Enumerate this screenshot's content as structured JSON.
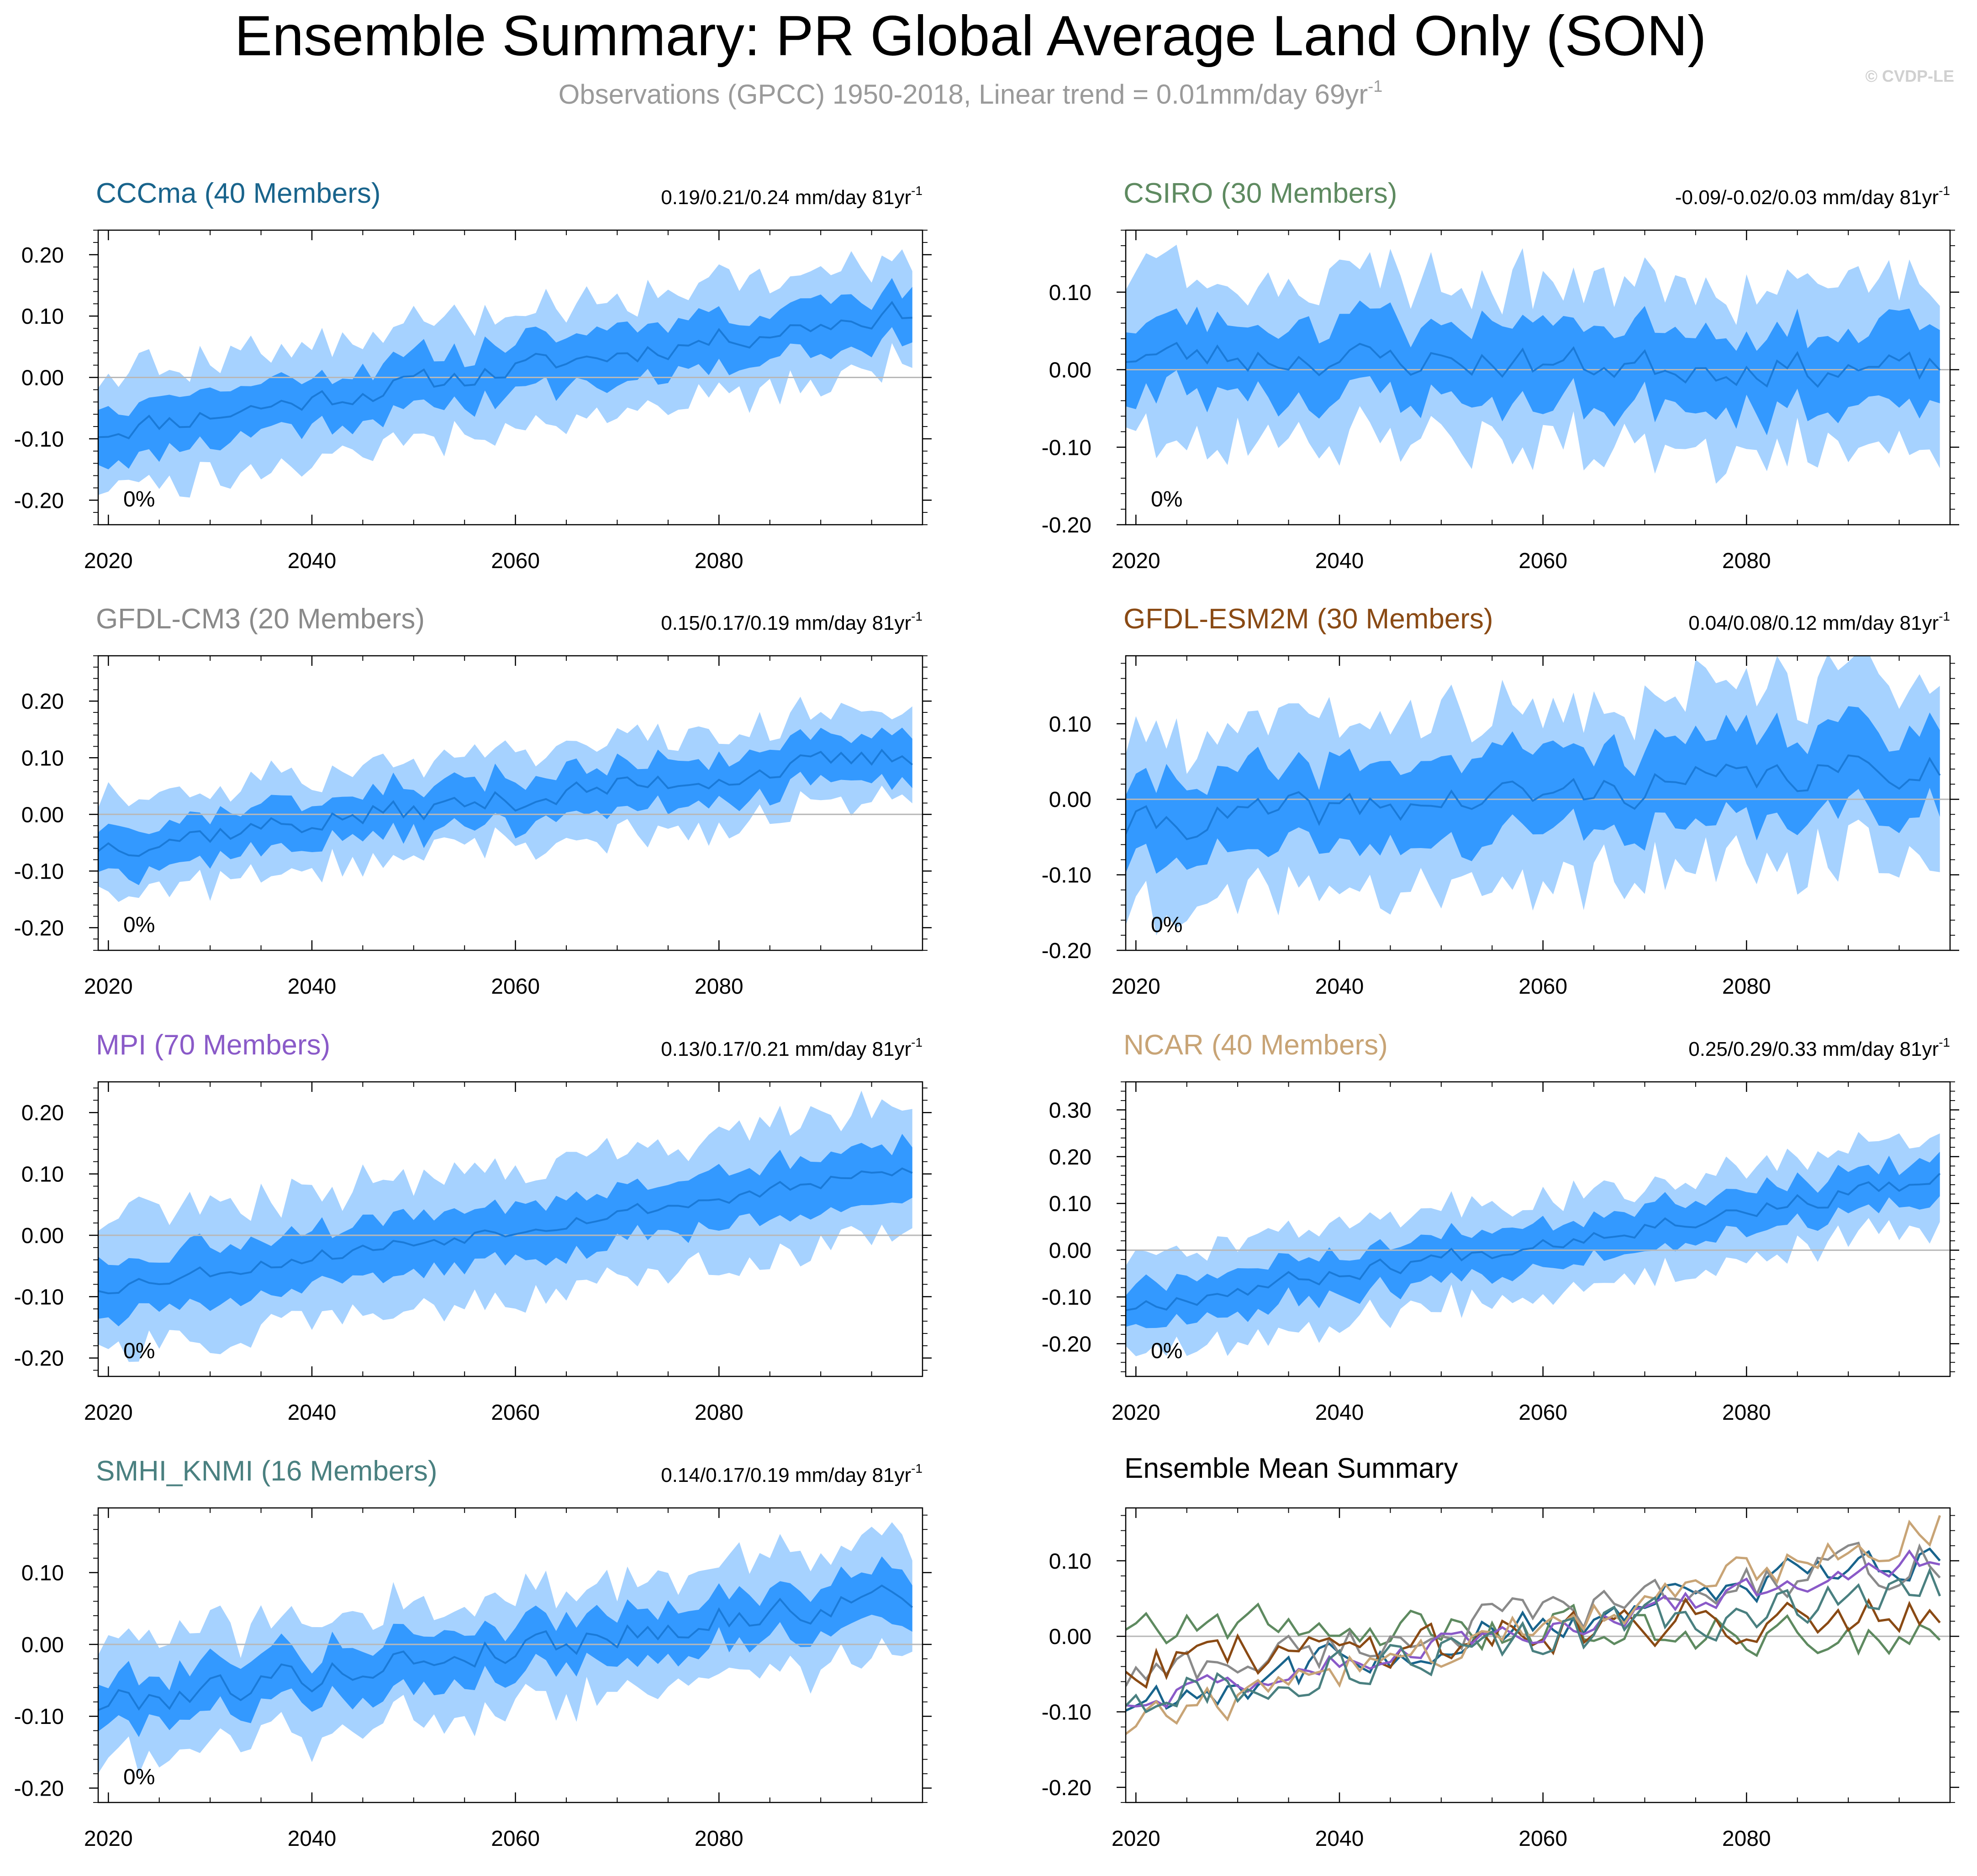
{
  "title": "Ensemble Summary: PR Global Average Land Only (SON)",
  "subtitle": "Observations (GPCC) 1950-2018, Linear trend = 0.01mm/day 69yr",
  "subtitle_exp": "-1",
  "copyright": "© CVDP-LE",
  "colors": {
    "band_outer": "#a6d2ff",
    "band_inner": "#3399ff",
    "mean_line": "#1a7ad8",
    "zero_line": "#b8b8b8",
    "axis": "#000000"
  },
  "chart_data": [
    {
      "type": "area",
      "title": "CCCma (40 Members)",
      "title_color": "#19648c",
      "stats": "0.19/0.21/0.24 mm/day 81yr",
      "stats_exp": "-1",
      "pct_label": "0%",
      "x": [
        2019,
        2100
      ],
      "x_ticks": [
        "2020",
        "2040",
        "2060",
        "2080"
      ],
      "x_tick_values": [
        2020,
        2040,
        2060,
        2080
      ],
      "ylim": [
        -0.24,
        0.24
      ],
      "y_ticks": [
        -0.2,
        -0.1,
        0.0,
        0.1,
        0.2
      ],
      "y_tick_labels": [
        "-0.20",
        "-0.10",
        "0.00",
        "0.10",
        "0.20"
      ],
      "mean_start": -0.088,
      "mean_end": 0.11,
      "inner_half_width": 0.042,
      "outer_half_width": 0.088,
      "noise": 0.018,
      "seed": 11
    },
    {
      "type": "area",
      "title": "CSIRO (30 Members)",
      "title_color": "#5e8a60",
      "stats": "-0.09/-0.02/0.03 mm/day 81yr",
      "stats_exp": "-1",
      "pct_label": "0%",
      "x": [
        2019,
        2100
      ],
      "x_ticks": [
        "2020",
        "2040",
        "2060",
        "2080"
      ],
      "x_tick_values": [
        2020,
        2040,
        2060,
        2080
      ],
      "ylim": [
        -0.2,
        0.18
      ],
      "y_ticks": [
        -0.2,
        -0.1,
        0.0,
        0.1
      ],
      "y_tick_labels": [
        "-0.20",
        "-0.10",
        "0.00",
        "0.10"
      ],
      "mean_start": 0.02,
      "mean_end": -0.002,
      "inner_half_width": 0.05,
      "outer_half_width": 0.1,
      "noise": 0.02,
      "seed": 23
    },
    {
      "type": "area",
      "title": "GFDL-CM3 (20 Members)",
      "title_color": "#8a8a8a",
      "stats": "0.15/0.17/0.19 mm/day 81yr",
      "stats_exp": "-1",
      "pct_label": "0%",
      "x": [
        2019,
        2100
      ],
      "x_ticks": [
        "2020",
        "2040",
        "2060",
        "2080"
      ],
      "x_tick_values": [
        2020,
        2040,
        2060,
        2080
      ],
      "ylim": [
        -0.24,
        0.28
      ],
      "y_ticks": [
        -0.2,
        -0.1,
        0.0,
        0.1,
        0.2
      ],
      "y_tick_labels": [
        "-0.20",
        "-0.10",
        "0.00",
        "0.10",
        "0.20"
      ],
      "mean_start": -0.055,
      "mean_end": 0.105,
      "inner_half_width": 0.04,
      "outer_half_width": 0.08,
      "noise": 0.02,
      "seed": 37
    },
    {
      "type": "area",
      "title": "GFDL-ESM2M (30 Members)",
      "title_color": "#8a4a14",
      "stats": "0.04/0.08/0.12 mm/day 81yr",
      "stats_exp": "-1",
      "pct_label": "0%",
      "x": [
        2019,
        2100
      ],
      "x_ticks": [
        "2020",
        "2040",
        "2060",
        "2080"
      ],
      "x_tick_values": [
        2020,
        2040,
        2060,
        2080
      ],
      "ylim": [
        -0.2,
        0.19
      ],
      "y_ticks": [
        -0.2,
        -0.1,
        0.0,
        0.1
      ],
      "y_tick_labels": [
        "-0.20",
        "-0.10",
        "0.00",
        "0.10"
      ],
      "mean_start": -0.035,
      "mean_end": 0.045,
      "inner_half_width": 0.055,
      "outer_half_width": 0.11,
      "noise": 0.022,
      "seed": 41
    },
    {
      "type": "area",
      "title": "MPI (70 Members)",
      "title_color": "#8a5ac8",
      "stats": "0.13/0.17/0.21 mm/day 81yr",
      "stats_exp": "-1",
      "pct_label": "0%",
      "x": [
        2019,
        2100
      ],
      "x_ticks": [
        "2020",
        "2040",
        "2060",
        "2080"
      ],
      "x_tick_values": [
        2020,
        2040,
        2060,
        2080
      ],
      "ylim": [
        -0.23,
        0.25
      ],
      "y_ticks": [
        -0.2,
        -0.1,
        0.0,
        0.1,
        0.2
      ],
      "y_tick_labels": [
        "-0.20",
        "-0.10",
        "0.00",
        "0.10",
        "0.20"
      ],
      "mean_start": -0.085,
      "mean_end": 0.105,
      "inner_half_width": 0.045,
      "outer_half_width": 0.1,
      "noise": 0.012,
      "seed": 53
    },
    {
      "type": "area",
      "title": "NCAR (40 Members)",
      "title_color": "#c8a476",
      "stats": "0.25/0.29/0.33 mm/day 81yr",
      "stats_exp": "-1",
      "pct_label": "0%",
      "x": [
        2019,
        2100
      ],
      "x_ticks": [
        "2020",
        "2040",
        "2060",
        "2080"
      ],
      "x_tick_values": [
        2020,
        2040,
        2060,
        2080
      ],
      "ylim": [
        -0.27,
        0.36
      ],
      "y_ticks": [
        -0.2,
        -0.1,
        0.0,
        0.1,
        0.2,
        0.3
      ],
      "y_tick_labels": [
        "-0.20",
        "-0.10",
        "0.00",
        "0.10",
        "0.20",
        "0.30"
      ],
      "mean_start": -0.12,
      "mean_end": 0.15,
      "inner_half_width": 0.045,
      "outer_half_width": 0.095,
      "noise": 0.018,
      "seed": 67
    },
    {
      "type": "area",
      "title": "SMHI_KNMI (16 Members)",
      "title_color": "#4a8080",
      "stats": "0.14/0.17/0.19 mm/day 81yr",
      "stats_exp": "-1",
      "pct_label": "0%",
      "x": [
        2019,
        2100
      ],
      "x_ticks": [
        "2020",
        "2040",
        "2060",
        "2080"
      ],
      "x_tick_values": [
        2020,
        2040,
        2060,
        2080
      ],
      "ylim": [
        -0.22,
        0.19
      ],
      "y_ticks": [
        -0.2,
        -0.1,
        0.0,
        0.1
      ],
      "y_tick_labels": [
        "-0.20",
        "-0.10",
        "0.00",
        "0.10"
      ],
      "mean_start": -0.082,
      "mean_end": 0.07,
      "inner_half_width": 0.035,
      "outer_half_width": 0.075,
      "noise": 0.02,
      "seed": 79
    },
    {
      "type": "line",
      "title": "Ensemble Mean Summary",
      "title_color": "#000000",
      "x": [
        2019,
        2100
      ],
      "x_ticks": [
        "2020",
        "2040",
        "2060",
        "2080"
      ],
      "x_tick_values": [
        2020,
        2040,
        2060,
        2080
      ],
      "ylim": [
        -0.22,
        0.17
      ],
      "y_ticks": [
        -0.2,
        -0.1,
        0.0,
        0.1
      ],
      "y_tick_labels": [
        "-0.20",
        "-0.10",
        "0.00",
        "0.10"
      ],
      "series": [
        {
          "name": "CCCma",
          "color": "#19648c",
          "start": -0.088,
          "end": 0.11,
          "noise": 0.018,
          "seed": 11
        },
        {
          "name": "CSIRO",
          "color": "#5e8a60",
          "start": 0.02,
          "end": -0.002,
          "noise": 0.02,
          "seed": 23
        },
        {
          "name": "GFDL-CM3",
          "color": "#8a8a8a",
          "start": -0.055,
          "end": 0.105,
          "noise": 0.02,
          "seed": 37
        },
        {
          "name": "GFDL-ESM2M",
          "color": "#8a4a14",
          "start": -0.035,
          "end": 0.045,
          "noise": 0.022,
          "seed": 41
        },
        {
          "name": "MPI",
          "color": "#8a5ac8",
          "start": -0.085,
          "end": 0.105,
          "noise": 0.012,
          "seed": 53
        },
        {
          "name": "NCAR",
          "color": "#c8a476",
          "start": -0.12,
          "end": 0.15,
          "noise": 0.018,
          "seed": 67
        },
        {
          "name": "SMHI_KNMI",
          "color": "#4a8080",
          "start": -0.082,
          "end": 0.07,
          "noise": 0.02,
          "seed": 79
        }
      ]
    }
  ]
}
